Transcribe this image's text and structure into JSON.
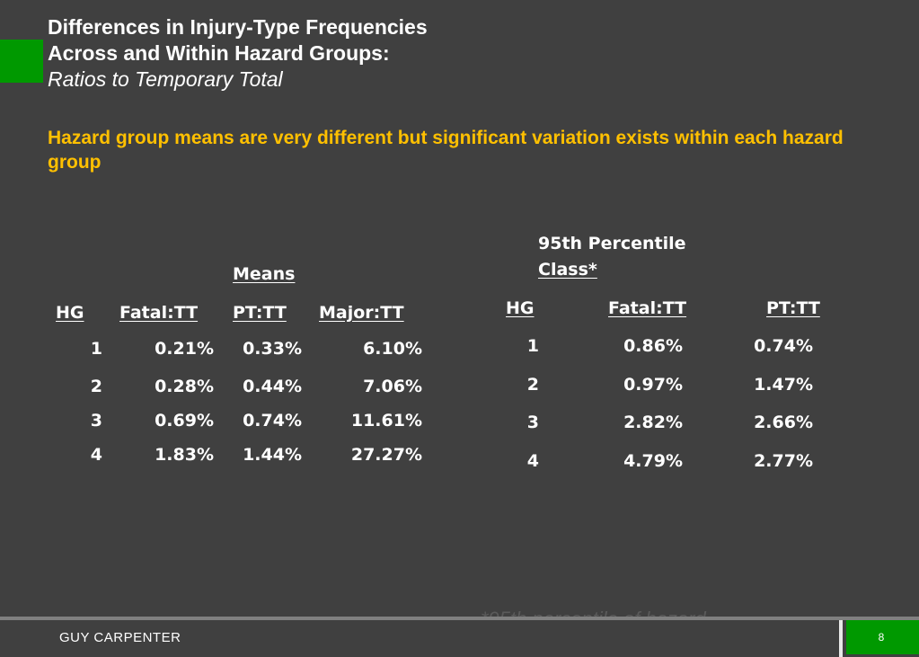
{
  "colors": {
    "background": "#404040",
    "accent": "#009900",
    "highlight": "#FFC000",
    "text": "#FFFFFF"
  },
  "slide": {
    "title_line1": "Differences in Injury-Type Frequencies",
    "title_line2": "Across and Within Hazard Groups:",
    "title_line3": "Ratios to Temporary Total",
    "subtitle": "Hazard group means are very different but significant variation exists within each hazard group"
  },
  "means_table": {
    "caption": "Means",
    "headers": [
      "HG",
      "Fatal:TT",
      "PT:TT",
      "Major:TT"
    ],
    "rows": [
      [
        "1",
        "0.21%",
        "0.33%",
        "6.10%"
      ],
      [
        "2",
        "0.28%",
        "0.44%",
        "7.06%"
      ],
      [
        "3",
        "0.69%",
        "0.74%",
        "11.61%"
      ],
      [
        "4",
        "1.83%",
        "1.44%",
        "27.27%"
      ]
    ]
  },
  "percentile_table": {
    "caption_line1": "95th Percentile",
    "caption_line2": "Class*",
    "headers": [
      "HG",
      "Fatal:TT",
      "PT:TT"
    ],
    "rows": [
      [
        "1",
        "0.86%",
        "0.74%"
      ],
      [
        "2",
        "0.97%",
        "1.47%"
      ],
      [
        "3",
        "2.82%",
        "2.66%"
      ],
      [
        "4",
        "4.79%",
        "2.77%"
      ]
    ]
  },
  "footnote_fragment": "*95th percentile of hazard",
  "footer": {
    "company": "GUY CARPENTER",
    "page_number": "8"
  }
}
